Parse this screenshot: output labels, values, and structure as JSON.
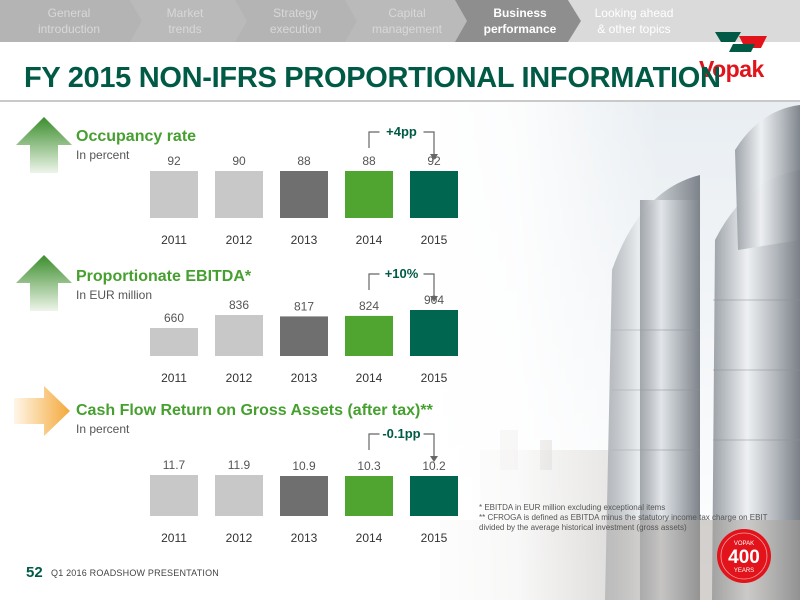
{
  "nav": {
    "items": [
      {
        "label": "General\nintroduction",
        "active": false
      },
      {
        "label": "Market\ntrends",
        "active": false
      },
      {
        "label": "Strategy\nexecution",
        "active": false
      },
      {
        "label": "Capital\nmanagement",
        "active": false
      },
      {
        "label": "Business\nperformance",
        "active": true
      },
      {
        "label": "Looking ahead\n& other topics",
        "active": false
      }
    ]
  },
  "logo": {
    "text": "Vopak"
  },
  "title": "FY 2015 NON-IFRS PROPORTIONAL INFORMATION",
  "sections": [
    {
      "title": "Occupancy rate",
      "unit": "In percent",
      "arrow": "up"
    },
    {
      "title": "Proportionate EBITDA*",
      "unit": "In EUR million",
      "arrow": "up"
    },
    {
      "title": "Cash Flow Return on Gross Assets (after tax)**",
      "unit": "In percent",
      "arrow": "right"
    }
  ],
  "chart_data": [
    {
      "type": "bar",
      "title": "Occupancy rate",
      "unit": "In percent",
      "categories": [
        "2011",
        "2012",
        "2013",
        "2014",
        "2015"
      ],
      "values": [
        92,
        90,
        88,
        88,
        92
      ],
      "value_labels": [
        "92",
        "90",
        "88",
        "88",
        "92"
      ],
      "delta": "+4pp",
      "colors": [
        "#c8c8c8",
        "#c8c8c8",
        "#6f6f6f",
        "#4fa52f",
        "#00664f"
      ]
    },
    {
      "type": "bar",
      "title": "Proportionate EBITDA*",
      "unit": "In EUR million",
      "categories": [
        "2011",
        "2012",
        "2013",
        "2014",
        "2015"
      ],
      "values": [
        660,
        836,
        817,
        824,
        904
      ],
      "value_labels": [
        "660",
        "836",
        "817",
        "824",
        "904"
      ],
      "delta": "+10%",
      "colors": [
        "#c8c8c8",
        "#c8c8c8",
        "#6f6f6f",
        "#4fa52f",
        "#00664f"
      ]
    },
    {
      "type": "bar",
      "title": "Cash Flow Return on Gross Assets (after tax)**",
      "unit": "In percent",
      "categories": [
        "2011",
        "2012",
        "2013",
        "2014",
        "2015"
      ],
      "values": [
        11.7,
        11.9,
        10.9,
        10.3,
        10.2
      ],
      "value_labels": [
        "11.7",
        "11.9",
        "10.9",
        "10.3",
        "10.2"
      ],
      "delta": "-0.1pp",
      "colors": [
        "#c8c8c8",
        "#c8c8c8",
        "#6f6f6f",
        "#4fa52f",
        "#00664f"
      ]
    }
  ],
  "footnotes": [
    "* EBITDA in EUR million excluding exceptional items",
    "** CFROGA is defined as EBITDA minus the statutory income tax charge on EBIT divided by the average historical investment (gross assets)"
  ],
  "footer": {
    "page_number": "52",
    "text": "Q1 2016 ROADSHOW PRESENTATION"
  },
  "badge": {
    "top": "VOPAK",
    "number": "400",
    "bottom": "YEARS"
  },
  "colors": {
    "brand_green": "#005a45",
    "accent_green": "#46a02f",
    "vopak_red": "#e2131a",
    "nav_bg": "#b9b9b9",
    "nav_active_bg": "#dcdcdc"
  }
}
